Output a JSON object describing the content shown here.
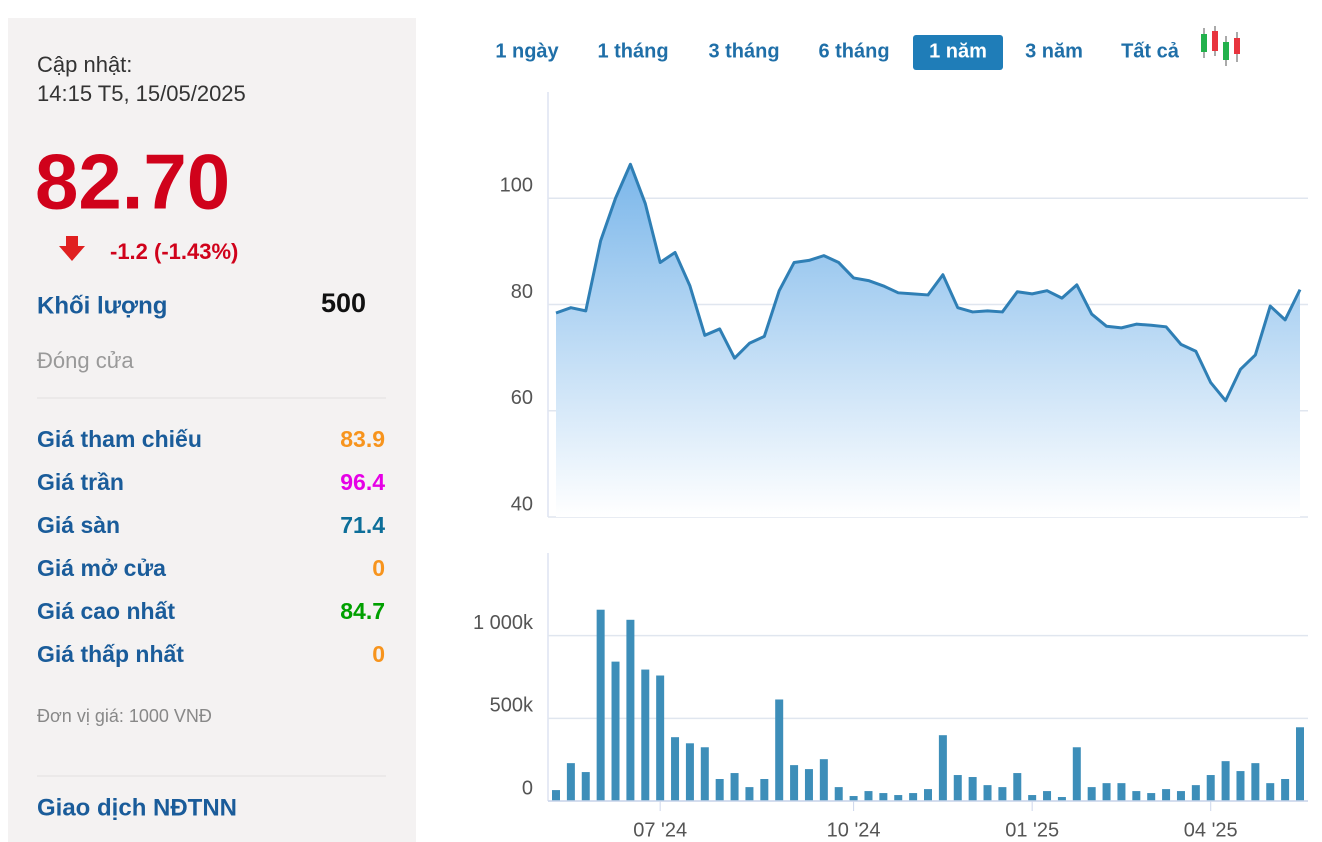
{
  "sidebar": {
    "update_label": "Cập nhật:",
    "update_time": "14:15 T5, 15/05/2025",
    "price": "82.70",
    "change": "-1.2 (-1.43%)",
    "volume_label": "Khối lượng",
    "volume": "500",
    "status": "Đóng cửa",
    "stats": [
      {
        "label": "Giá tham chiếu",
        "value": "83.9",
        "color": "#f7941d"
      },
      {
        "label": "Giá trần",
        "value": "96.4",
        "color": "#e600e6"
      },
      {
        "label": "Giá sàn",
        "value": "71.4",
        "color": "#0c6e99"
      },
      {
        "label": "Giá mở cửa",
        "value": "0",
        "color": "#f7941d"
      },
      {
        "label": "Giá cao nhất",
        "value": "84.7",
        "color": "#00a000"
      },
      {
        "label": "Giá thấp nhất",
        "value": "0",
        "color": "#f7941d"
      }
    ],
    "unit_note": "Đơn vị giá: 1000 VNĐ",
    "foreign_title": "Giao dịch NĐTNN"
  },
  "range_tabs": {
    "items": [
      "1 ngày",
      "1 tháng",
      "3 tháng",
      "6 tháng",
      "1 năm",
      "3 năm",
      "Tất cả"
    ],
    "active": 4
  },
  "chart_data": [
    {
      "type": "area",
      "color": "#2f7fb5",
      "ylim": [
        40,
        120
      ],
      "yticks": [
        40,
        60,
        80,
        100
      ],
      "grid": true,
      "values": [
        78.4,
        79.4,
        78.8,
        92,
        100,
        106.4,
        99,
        87.9,
        89.8,
        83.5,
        74.2,
        75.4,
        69.9,
        72.7,
        74,
        82.6,
        87.9,
        88.3,
        89.2,
        87.9,
        85,
        84.5,
        83.5,
        82.2,
        82,
        81.8,
        85.6,
        79.4,
        78.6,
        78.8,
        78.6,
        82.4,
        82,
        82.6,
        81.2,
        83.7,
        78.2,
        75.9,
        75.6,
        76.3,
        76.1,
        75.8,
        72.5,
        71.2,
        65.3,
        61.9,
        67.8,
        70.5,
        79.7,
        77.1,
        82.8
      ]
    },
    {
      "type": "bar",
      "color": "#3d8eb9",
      "ylim": [
        0,
        1500
      ],
      "yticks": [
        0,
        {
          "value": 500,
          "label": "500k"
        },
        {
          "value": 1000,
          "label": "1 000k"
        }
      ],
      "grid": true,
      "categories": [
        null,
        null,
        null,
        null,
        null,
        null,
        null,
        "07 '24",
        null,
        null,
        null,
        null,
        null,
        null,
        null,
        null,
        null,
        null,
        null,
        null,
        "10 '24",
        null,
        null,
        null,
        null,
        null,
        null,
        null,
        null,
        null,
        null,
        null,
        "01 '25",
        null,
        null,
        null,
        null,
        null,
        null,
        null,
        null,
        null,
        null,
        null,
        "04 '25",
        null,
        null,
        null,
        null,
        null,
        null
      ],
      "values": [
        66,
        229,
        175,
        1157,
        843,
        1096,
        795,
        759,
        386,
        349,
        325,
        133,
        169,
        84,
        133,
        614,
        217,
        193,
        253,
        84,
        30,
        60,
        48,
        36,
        48,
        72,
        398,
        157,
        145,
        96,
        84,
        169,
        36,
        60,
        24,
        325,
        84,
        108,
        108,
        60,
        48,
        72,
        60,
        96,
        157,
        241,
        181,
        229,
        108,
        133,
        446
      ]
    }
  ]
}
